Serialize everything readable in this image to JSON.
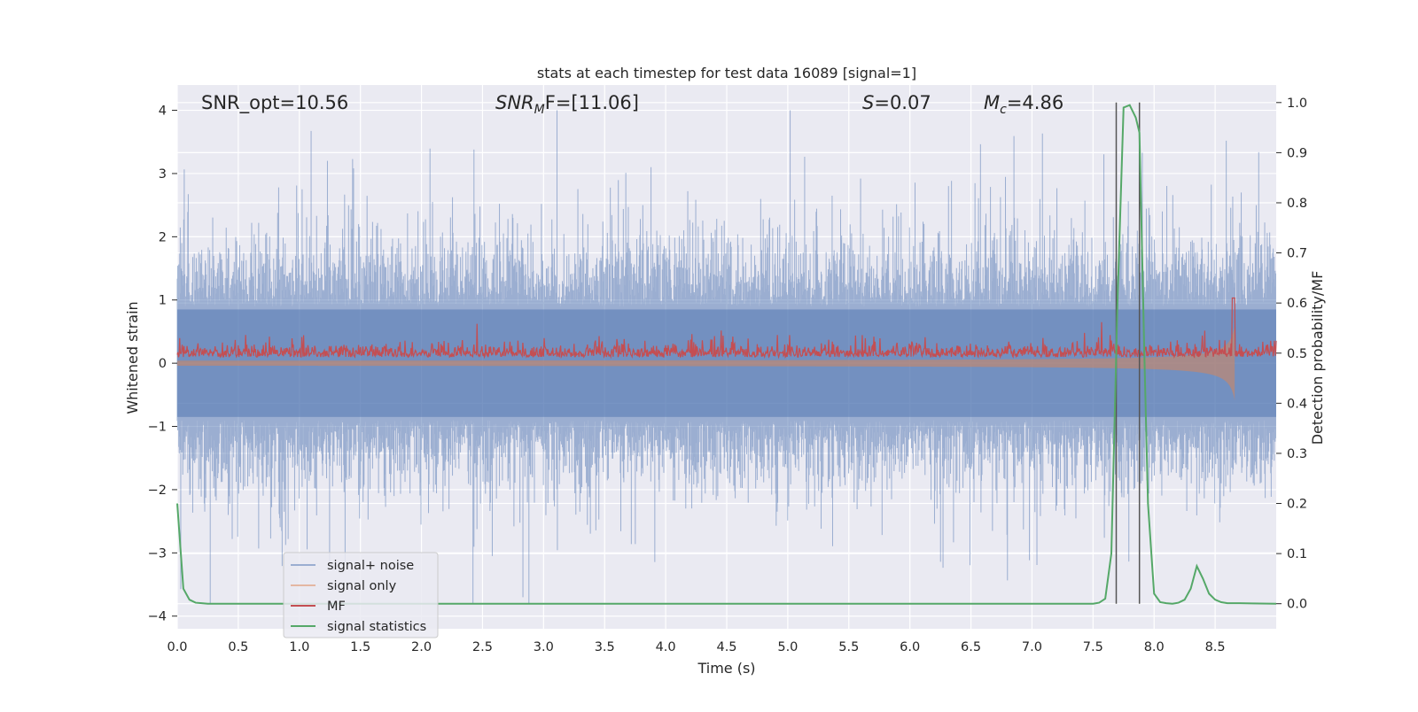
{
  "chart_data": {
    "type": "line",
    "title": "stats at each timestep for test data 16089 [signal=1]",
    "xlabel": "Time (s)",
    "ylabel": "Whitened strain",
    "ylabel_right": "Detection probability/MF",
    "xlim": [
      0.0,
      9.0
    ],
    "ylim": [
      -4.2,
      4.4
    ],
    "ylim_right": [
      -0.05,
      1.035
    ],
    "xticks": [
      "0.0",
      "0.5",
      "1.0",
      "1.5",
      "2.0",
      "2.5",
      "3.0",
      "3.5",
      "4.0",
      "4.5",
      "5.0",
      "5.5",
      "6.0",
      "6.5",
      "7.0",
      "7.5",
      "8.0",
      "8.5"
    ],
    "yticks": [
      "4",
      "3",
      "2",
      "1",
      "0",
      "−1",
      "−2",
      "−3",
      "−4"
    ],
    "yticks_right": [
      "1.0",
      "0.9",
      "0.8",
      "0.7",
      "0.6",
      "0.5",
      "0.4",
      "0.3",
      "0.2",
      "0.1",
      "0.0"
    ],
    "grid": true,
    "annotations": {
      "snr_opt": "SNR_opt=10.56",
      "snr_mf_main": "SNR",
      "snr_mf_sub": "M",
      "snr_mf_rest": "F=[11.06]",
      "s_main": "S",
      "s_rest": "=0.07",
      "mc_main": "M",
      "mc_sub": "c",
      "mc_rest": "=4.86"
    },
    "vertical_lines_s": [
      7.69,
      7.88
    ],
    "legend": {
      "position": "lower-left",
      "entries": [
        "signal+ noise",
        "signal only",
        "MF",
        "signal statistics"
      ]
    },
    "series": [
      {
        "name": "signal+ noise",
        "axis": "left",
        "description": "whitened noisy strain, amplitude ~±2 with spikes to 3.2 and 4.0",
        "peak": 4.0,
        "trough": -3.8
      },
      {
        "name": "signal only",
        "axis": "left",
        "description": "chirp waveform growing toward merger near 8.65 s",
        "peak_amplitude": 0.65
      },
      {
        "name": "MF",
        "axis": "right",
        "baseline": 0.5,
        "peak": 0.61,
        "peak_time_s": 8.65
      },
      {
        "name": "signal statistics",
        "axis": "right",
        "x": [
          0.0,
          0.05,
          0.1,
          0.15,
          0.2,
          0.25,
          0.5,
          1.0,
          2.0,
          3.0,
          4.0,
          5.0,
          6.0,
          7.0,
          7.5,
          7.55,
          7.6,
          7.65,
          7.7,
          7.75,
          7.8,
          7.85,
          7.88,
          7.92,
          7.95,
          8.0,
          8.05,
          8.1,
          8.15,
          8.2,
          8.25,
          8.3,
          8.35,
          8.4,
          8.45,
          8.5,
          8.55,
          8.6,
          8.7,
          8.8,
          9.0
        ],
        "y": [
          0.2,
          0.03,
          0.008,
          0.002,
          0.001,
          0.0,
          0.0,
          0.0,
          0.0,
          0.0,
          0.0,
          0.0,
          0.0,
          0.0,
          0.0,
          0.002,
          0.01,
          0.1,
          0.6,
          0.99,
          0.995,
          0.97,
          0.94,
          0.5,
          0.2,
          0.02,
          0.003,
          0.001,
          0.0,
          0.002,
          0.008,
          0.03,
          0.075,
          0.05,
          0.02,
          0.008,
          0.003,
          0.001,
          0.001,
          0.0005,
          0.0
        ]
      }
    ]
  }
}
